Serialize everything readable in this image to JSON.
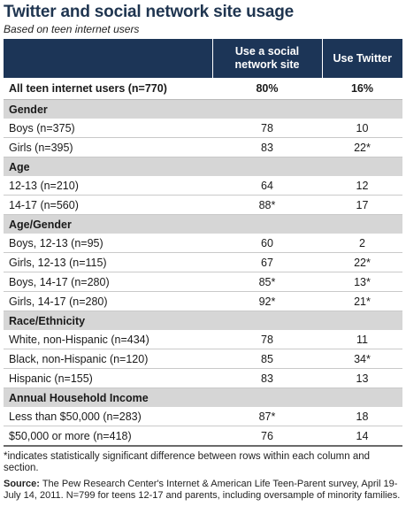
{
  "title": "Twitter and social network site usage",
  "subtitle": "Based on teen internet users",
  "columns": [
    "Use a social network site",
    "Use Twitter"
  ],
  "total": {
    "label": "All teen internet users (n=770)",
    "sns": "80%",
    "twitter": "16%"
  },
  "sections": [
    {
      "title": "Gender",
      "rows": [
        {
          "label": "Boys (n=375)",
          "sns": "78",
          "twitter": "10"
        },
        {
          "label": "Girls (n=395)",
          "sns": "83",
          "twitter": "22*"
        }
      ]
    },
    {
      "title": "Age",
      "rows": [
        {
          "label": "12-13 (n=210)",
          "sns": "64",
          "twitter": "12"
        },
        {
          "label": "14-17 (n=560)",
          "sns": "88*",
          "twitter": "17"
        }
      ]
    },
    {
      "title": "Age/Gender",
      "rows": [
        {
          "label": "Boys, 12-13 (n=95)",
          "sns": "60",
          "twitter": "2"
        },
        {
          "label": "Girls, 12-13 (n=115)",
          "sns": "67",
          "twitter": "22*"
        },
        {
          "label": "Boys, 14-17 (n=280)",
          "sns": "85*",
          "twitter": "13*"
        },
        {
          "label": "Girls, 14-17 (n=280)",
          "sns": "92*",
          "twitter": "21*"
        }
      ]
    },
    {
      "title": "Race/Ethnicity",
      "rows": [
        {
          "label": "White, non-Hispanic (n=434)",
          "sns": "78",
          "twitter": "11"
        },
        {
          "label": "Black, non-Hispanic (n=120)",
          "sns": "85",
          "twitter": "34*"
        },
        {
          "label": "Hispanic (n=155)",
          "sns": "83",
          "twitter": "13"
        }
      ]
    },
    {
      "title": "Annual Household Income",
      "rows": [
        {
          "label": "Less than $50,000 (n=283)",
          "sns": "87*",
          "twitter": "18"
        },
        {
          "label": "$50,000 or more (n=418)",
          "sns": "76",
          "twitter": "14"
        }
      ]
    }
  ],
  "footnote": "*indicates statistically significant difference between rows within each column and section.",
  "source_label": "Source:",
  "source_text": "The Pew Research Center's Internet & American Life Teen-Parent survey, April 19-July 14, 2011. N=799 for teens 12-17 and parents, including oversample of minority families."
}
